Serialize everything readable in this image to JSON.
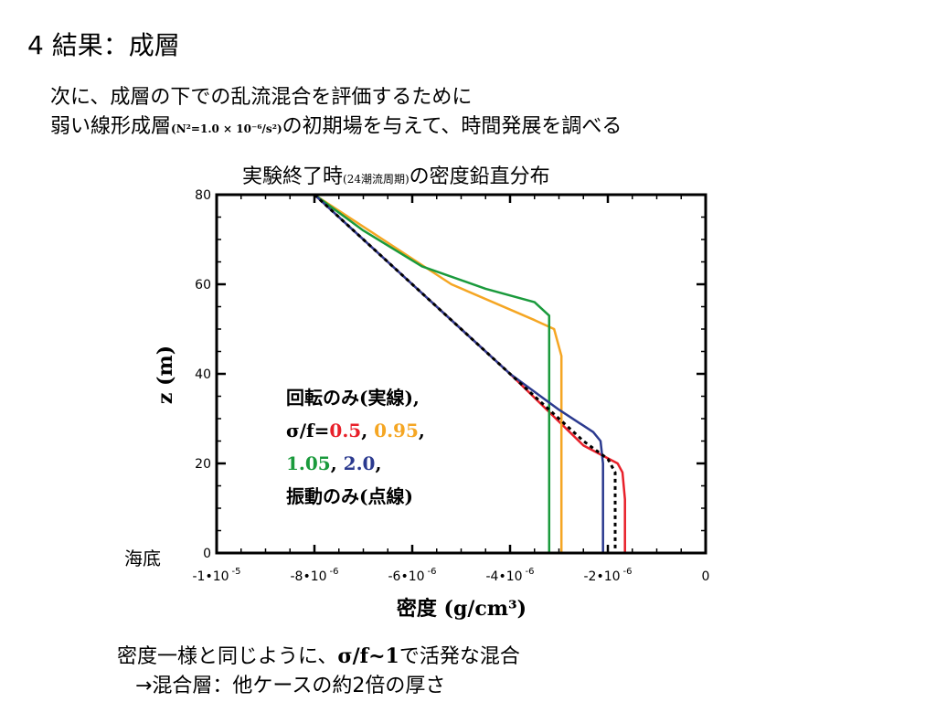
{
  "slide": {
    "title": "4 結果：成層",
    "intro_line1": "次に、成層の下での乱流混合を評価するために",
    "intro_line2_pre": "弱い線形成層",
    "intro_line2_param": "(N²=1.0 × 10⁻⁶/s²)",
    "intro_line2_post": "の初期場を与えて、時間発展を調べる",
    "bottom_line1_pre": "密度一様と同じように、",
    "bottom_line1_param": "σ/f~1",
    "bottom_line1_post": "で活発な混合",
    "bottom_line2": "→混合層：他ケースの約2倍の厚さ"
  },
  "chart_data": {
    "type": "line",
    "title_pre": "実験終了時",
    "title_small": "(24潮流周期)",
    "title_post": "の密度鉛直分布",
    "xlabel": "密度 (g/cm³)",
    "ylabel": "z (m)",
    "seabed_label": "海底",
    "xlim": [
      -1e-05,
      0
    ],
    "ylim": [
      0,
      80
    ],
    "x_ticks": [
      {
        "value": -1e-05,
        "base": "-1•10",
        "exp": "-5"
      },
      {
        "value": -8e-06,
        "base": "-8•10",
        "exp": "-6"
      },
      {
        "value": -6e-06,
        "base": "-6•10",
        "exp": "-6"
      },
      {
        "value": -4e-06,
        "base": "-4•10",
        "exp": "-6"
      },
      {
        "value": -2e-06,
        "base": "-2•10",
        "exp": "-6"
      },
      {
        "value": 0,
        "base": "0",
        "exp": ""
      }
    ],
    "y_ticks": [
      0,
      20,
      40,
      60,
      80
    ],
    "legend_lines": [
      [
        {
          "text": "回転のみ(実線),",
          "color": "#000000"
        }
      ],
      [
        {
          "text": "σ/f=",
          "color": "#000000"
        },
        {
          "text": "0.5",
          "color": "#e8202a"
        },
        {
          "text": ", ",
          "color": "#000000"
        },
        {
          "text": "0.95",
          "color": "#f5a623"
        },
        {
          "text": ",",
          "color": "#000000"
        }
      ],
      [
        {
          "text": "1.05",
          "color": "#1a9a3c"
        },
        {
          "text": ", ",
          "color": "#000000"
        },
        {
          "text": "2.0",
          "color": "#2b3a8f"
        },
        {
          "text": ",",
          "color": "#000000"
        }
      ],
      [
        {
          "text": "振動のみ(点線)",
          "color": "#000000"
        }
      ]
    ],
    "series": [
      {
        "color": "#e8202a",
        "dash": false,
        "points": [
          [
            -8e-06,
            80
          ],
          [
            -6e-06,
            60
          ],
          [
            -4e-06,
            40
          ],
          [
            -2.5e-06,
            24
          ],
          [
            -1.8e-06,
            20
          ],
          [
            -1.7e-06,
            18
          ],
          [
            -1.65e-06,
            12
          ],
          [
            -1.65e-06,
            0
          ]
        ]
      },
      {
        "color": "#f5a623",
        "dash": false,
        "points": [
          [
            -8e-06,
            80
          ],
          [
            -6.6e-06,
            70
          ],
          [
            -5.2e-06,
            60
          ],
          [
            -3.5e-06,
            52
          ],
          [
            -3.1e-06,
            50
          ],
          [
            -2.95e-06,
            44
          ],
          [
            -2.95e-06,
            30
          ],
          [
            -2.95e-06,
            0
          ]
        ]
      },
      {
        "color": "#1a9a3c",
        "dash": false,
        "points": [
          [
            -8e-06,
            80
          ],
          [
            -7e-06,
            72
          ],
          [
            -5.8e-06,
            64
          ],
          [
            -4.5e-06,
            59
          ],
          [
            -3.5e-06,
            56
          ],
          [
            -3.2e-06,
            53
          ],
          [
            -3.2e-06,
            40
          ],
          [
            -3.2e-06,
            0
          ]
        ]
      },
      {
        "color": "#2b3a8f",
        "dash": false,
        "points": [
          [
            -8e-06,
            80
          ],
          [
            -6e-06,
            60
          ],
          [
            -4e-06,
            40
          ],
          [
            -3e-06,
            32
          ],
          [
            -2.3e-06,
            27
          ],
          [
            -2.15e-06,
            25
          ],
          [
            -2.1e-06,
            20
          ],
          [
            -2.1e-06,
            0
          ]
        ]
      },
      {
        "color": "#000000",
        "dash": true,
        "points": [
          [
            -8e-06,
            80
          ],
          [
            -6e-06,
            60
          ],
          [
            -4e-06,
            40
          ],
          [
            -2.5e-06,
            25
          ],
          [
            -2e-06,
            21
          ],
          [
            -1.85e-06,
            18
          ],
          [
            -1.85e-06,
            10
          ],
          [
            -1.85e-06,
            0
          ]
        ]
      }
    ]
  }
}
